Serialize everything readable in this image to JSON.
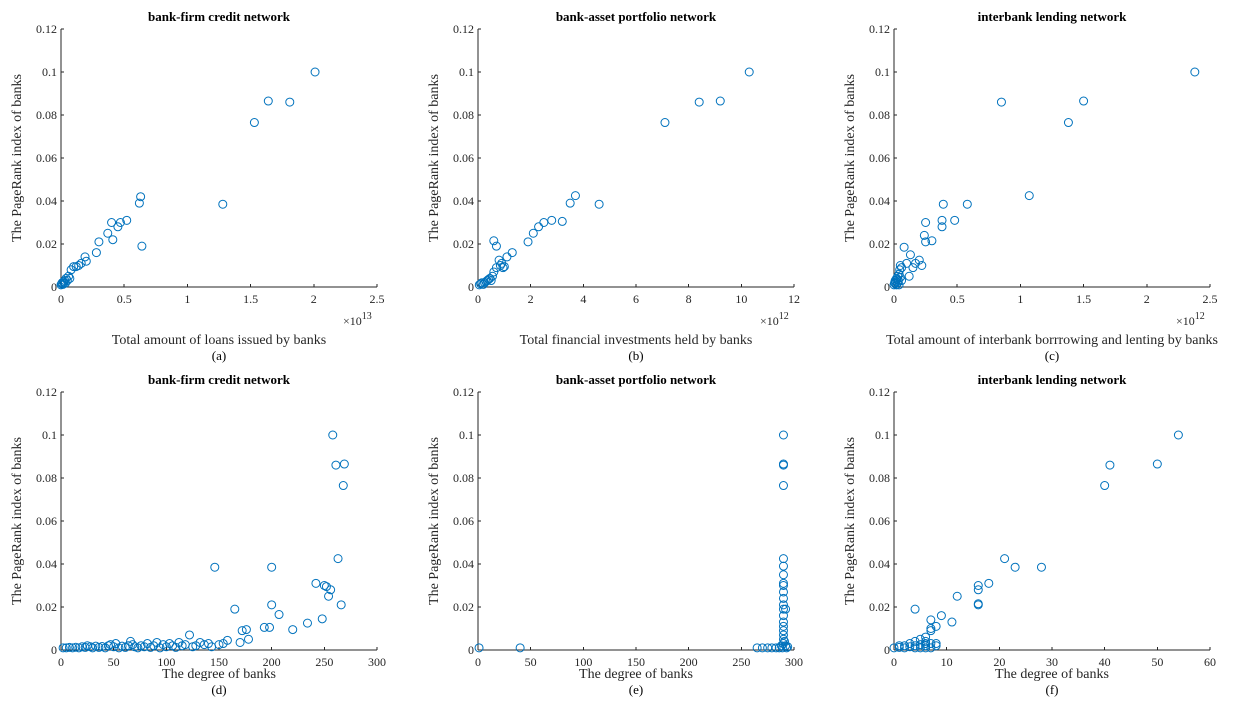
{
  "chart_data": [
    {
      "type": "scatter",
      "title": "bank-firm credit network",
      "xlabel": "Total amount of loans issued by banks",
      "ylabel": "The PageRank index of banks",
      "caption": "(a)",
      "x_multiplier": "10",
      "x_multiplier_exp": "13",
      "xlim": [
        0,
        2.5
      ],
      "ylim": [
        0,
        0.12
      ],
      "xticks": [
        "0",
        "0.5",
        "1",
        "1.5",
        "2",
        "2.5"
      ],
      "yticks": [
        "0",
        "0.02",
        "0.04",
        "0.06",
        "0.08",
        "0.1",
        "0.12"
      ],
      "marker_color": "#0072BD",
      "points": [
        [
          0.0,
          0.001
        ],
        [
          0.005,
          0.0015
        ],
        [
          0.01,
          0.002
        ],
        [
          0.015,
          0.0012
        ],
        [
          0.02,
          0.0025
        ],
        [
          0.025,
          0.002
        ],
        [
          0.03,
          0.003
        ],
        [
          0.035,
          0.0018
        ],
        [
          0.04,
          0.004
        ],
        [
          0.05,
          0.003
        ],
        [
          0.06,
          0.005
        ],
        [
          0.07,
          0.004
        ],
        [
          0.08,
          0.008
        ],
        [
          0.1,
          0.0095
        ],
        [
          0.12,
          0.0095
        ],
        [
          0.14,
          0.01
        ],
        [
          0.16,
          0.011
        ],
        [
          0.19,
          0.014
        ],
        [
          0.2,
          0.012
        ],
        [
          0.28,
          0.016
        ],
        [
          0.3,
          0.021
        ],
        [
          0.37,
          0.025
        ],
        [
          0.4,
          0.03
        ],
        [
          0.41,
          0.022
        ],
        [
          0.45,
          0.028
        ],
        [
          0.47,
          0.03
        ],
        [
          0.52,
          0.031
        ],
        [
          0.62,
          0.039
        ],
        [
          0.63,
          0.042
        ],
        [
          0.64,
          0.019
        ],
        [
          1.28,
          0.0385
        ],
        [
          1.53,
          0.0765
        ],
        [
          1.64,
          0.0865
        ],
        [
          1.81,
          0.086
        ],
        [
          2.01,
          0.1
        ]
      ]
    },
    {
      "type": "scatter",
      "title": "bank-asset portfolio network",
      "xlabel": "Total financial investments held by banks",
      "ylabel": "The PageRank index of banks",
      "caption": "(b)",
      "x_multiplier": "10",
      "x_multiplier_exp": "12",
      "xlim": [
        0,
        12
      ],
      "ylim": [
        0,
        0.12
      ],
      "xticks": [
        "0",
        "2",
        "4",
        "6",
        "8",
        "10",
        "12"
      ],
      "yticks": [
        "0",
        "0.02",
        "0.04",
        "0.06",
        "0.08",
        "0.1",
        "0.12"
      ],
      "marker_color": "#0072BD",
      "points": [
        [
          0.05,
          0.001
        ],
        [
          0.1,
          0.0015
        ],
        [
          0.15,
          0.002
        ],
        [
          0.2,
          0.0012
        ],
        [
          0.25,
          0.002
        ],
        [
          0.3,
          0.0025
        ],
        [
          0.35,
          0.003
        ],
        [
          0.4,
          0.0035
        ],
        [
          0.45,
          0.004
        ],
        [
          0.5,
          0.003
        ],
        [
          0.55,
          0.005
        ],
        [
          0.6,
          0.007
        ],
        [
          0.6,
          0.0215
        ],
        [
          0.7,
          0.019
        ],
        [
          0.7,
          0.009
        ],
        [
          0.8,
          0.0125
        ],
        [
          0.85,
          0.01
        ],
        [
          0.9,
          0.011
        ],
        [
          0.95,
          0.009
        ],
        [
          1.0,
          0.0095
        ],
        [
          1.1,
          0.014
        ],
        [
          1.3,
          0.016
        ],
        [
          1.9,
          0.021
        ],
        [
          2.1,
          0.025
        ],
        [
          2.3,
          0.028
        ],
        [
          2.5,
          0.03
        ],
        [
          2.8,
          0.031
        ],
        [
          3.2,
          0.0305
        ],
        [
          3.5,
          0.039
        ],
        [
          3.7,
          0.0425
        ],
        [
          4.6,
          0.0385
        ],
        [
          7.1,
          0.0765
        ],
        [
          8.4,
          0.086
        ],
        [
          9.2,
          0.0865
        ],
        [
          10.3,
          0.1
        ]
      ]
    },
    {
      "type": "scatter",
      "title": "interbank lending network",
      "xlabel": "Total amount of interbank borrrowing and lenting by banks",
      "ylabel": "The PageRank index of banks",
      "caption": "(c)",
      "x_multiplier": "10",
      "x_multiplier_exp": "12",
      "xlim": [
        0,
        2.5
      ],
      "ylim": [
        0,
        0.12
      ],
      "xticks": [
        "0",
        "0.5",
        "1",
        "1.5",
        "2",
        "2.5"
      ],
      "yticks": [
        "0",
        "0.02",
        "0.04",
        "0.06",
        "0.08",
        "0.1",
        "0.12"
      ],
      "marker_color": "#0072BD",
      "points": [
        [
          0.0,
          0.001
        ],
        [
          0.005,
          0.002
        ],
        [
          0.01,
          0.0015
        ],
        [
          0.01,
          0.003
        ],
        [
          0.015,
          0.0025
        ],
        [
          0.02,
          0.001
        ],
        [
          0.02,
          0.004
        ],
        [
          0.025,
          0.0035
        ],
        [
          0.03,
          0.002
        ],
        [
          0.03,
          0.005
        ],
        [
          0.035,
          0.003
        ],
        [
          0.04,
          0.001
        ],
        [
          0.04,
          0.006
        ],
        [
          0.045,
          0.008
        ],
        [
          0.05,
          0.01
        ],
        [
          0.05,
          0.0045
        ],
        [
          0.06,
          0.003
        ],
        [
          0.06,
          0.009
        ],
        [
          0.08,
          0.0185
        ],
        [
          0.1,
          0.011
        ],
        [
          0.12,
          0.005
        ],
        [
          0.13,
          0.015
        ],
        [
          0.15,
          0.009
        ],
        [
          0.17,
          0.011
        ],
        [
          0.2,
          0.0125
        ],
        [
          0.22,
          0.01
        ],
        [
          0.24,
          0.024
        ],
        [
          0.25,
          0.03
        ],
        [
          0.25,
          0.021
        ],
        [
          0.3,
          0.0215
        ],
        [
          0.38,
          0.028
        ],
        [
          0.38,
          0.031
        ],
        [
          0.39,
          0.0385
        ],
        [
          0.48,
          0.031
        ],
        [
          0.58,
          0.0385
        ],
        [
          0.85,
          0.086
        ],
        [
          1.07,
          0.0425
        ],
        [
          1.38,
          0.0765
        ],
        [
          1.5,
          0.0865
        ],
        [
          2.38,
          0.1
        ]
      ]
    },
    {
      "type": "scatter",
      "title": "bank-firm credit network",
      "xlabel": "The degree of banks",
      "ylabel": "The PageRank index of banks",
      "caption": "(d)",
      "x_multiplier": "",
      "x_multiplier_exp": "",
      "xlim": [
        0,
        300
      ],
      "ylim": [
        0,
        0.12
      ],
      "xticks": [
        "0",
        "50",
        "100",
        "150",
        "200",
        "250",
        "300"
      ],
      "yticks": [
        "0",
        "0.02",
        "0.04",
        "0.06",
        "0.08",
        "0.1",
        "0.12"
      ],
      "marker_color": "#0072BD",
      "points": [
        [
          2,
          0.001
        ],
        [
          5,
          0.001
        ],
        [
          8,
          0.0012
        ],
        [
          11,
          0.001
        ],
        [
          14,
          0.0013
        ],
        [
          17,
          0.001
        ],
        [
          20,
          0.0015
        ],
        [
          23,
          0.0012
        ],
        [
          25,
          0.002
        ],
        [
          28,
          0.0015
        ],
        [
          30,
          0.001
        ],
        [
          33,
          0.0018
        ],
        [
          36,
          0.0012
        ],
        [
          39,
          0.0016
        ],
        [
          42,
          0.001
        ],
        [
          45,
          0.002
        ],
        [
          47,
          0.0025
        ],
        [
          50,
          0.0015
        ],
        [
          52,
          0.003
        ],
        [
          55,
          0.001
        ],
        [
          58,
          0.0018
        ],
        [
          61,
          0.0012
        ],
        [
          64,
          0.002
        ],
        [
          66,
          0.004
        ],
        [
          68,
          0.0025
        ],
        [
          70,
          0.0015
        ],
        [
          73,
          0.001
        ],
        [
          76,
          0.002
        ],
        [
          79,
          0.0015
        ],
        [
          82,
          0.003
        ],
        [
          85,
          0.0012
        ],
        [
          88,
          0.002
        ],
        [
          91,
          0.0035
        ],
        [
          94,
          0.001
        ],
        [
          97,
          0.0025
        ],
        [
          100,
          0.0015
        ],
        [
          103,
          0.003
        ],
        [
          106,
          0.002
        ],
        [
          109,
          0.0012
        ],
        [
          112,
          0.0035
        ],
        [
          115,
          0.002
        ],
        [
          118,
          0.0025
        ],
        [
          122,
          0.007
        ],
        [
          125,
          0.0015
        ],
        [
          128,
          0.002
        ],
        [
          132,
          0.0035
        ],
        [
          136,
          0.0025
        ],
        [
          140,
          0.003
        ],
        [
          143,
          0.0015
        ],
        [
          146,
          0.0385
        ],
        [
          150,
          0.0025
        ],
        [
          154,
          0.003
        ],
        [
          158,
          0.0045
        ],
        [
          165,
          0.019
        ],
        [
          170,
          0.0035
        ],
        [
          172,
          0.009
        ],
        [
          176,
          0.0095
        ],
        [
          178,
          0.005
        ],
        [
          193,
          0.0105
        ],
        [
          198,
          0.0105
        ],
        [
          200,
          0.0385
        ],
        [
          200,
          0.021
        ],
        [
          207,
          0.0165
        ],
        [
          220,
          0.0095
        ],
        [
          234,
          0.0125
        ],
        [
          242,
          0.031
        ],
        [
          248,
          0.0145
        ],
        [
          250,
          0.03
        ],
        [
          252,
          0.0295
        ],
        [
          254,
          0.025
        ],
        [
          256,
          0.028
        ],
        [
          258,
          0.1
        ],
        [
          261,
          0.086
        ],
        [
          263,
          0.0425
        ],
        [
          266,
          0.021
        ],
        [
          268,
          0.0765
        ],
        [
          269,
          0.0865
        ]
      ]
    },
    {
      "type": "scatter",
      "title": "bank-asset portfolio network",
      "xlabel": "The degree of banks",
      "ylabel": "The PageRank index of banks",
      "caption": "(e)",
      "x_multiplier": "",
      "x_multiplier_exp": "",
      "xlim": [
        0,
        300
      ],
      "ylim": [
        0,
        0.12
      ],
      "xticks": [
        "0",
        "50",
        "100",
        "150",
        "200",
        "250",
        "300"
      ],
      "yticks": [
        "0",
        "0.02",
        "0.04",
        "0.06",
        "0.08",
        "0.1",
        "0.12"
      ],
      "marker_color": "#0072BD",
      "points": [
        [
          1,
          0.001
        ],
        [
          40,
          0.001
        ],
        [
          265,
          0.001
        ],
        [
          270,
          0.001
        ],
        [
          275,
          0.001
        ],
        [
          279,
          0.001
        ],
        [
          283,
          0.001
        ],
        [
          286,
          0.001
        ],
        [
          288,
          0.002
        ],
        [
          289,
          0.001
        ],
        [
          290,
          0.003
        ],
        [
          290,
          0.005
        ],
        [
          290,
          0.007
        ],
        [
          290,
          0.009
        ],
        [
          290,
          0.011
        ],
        [
          290,
          0.013
        ],
        [
          290,
          0.016
        ],
        [
          290,
          0.019
        ],
        [
          290,
          0.021
        ],
        [
          290,
          0.024
        ],
        [
          290,
          0.027
        ],
        [
          290,
          0.03
        ],
        [
          290,
          0.031
        ],
        [
          290,
          0.035
        ],
        [
          290,
          0.039
        ],
        [
          290,
          0.0425
        ],
        [
          290,
          0.0765
        ],
        [
          290,
          0.086
        ],
        [
          290,
          0.0865
        ],
        [
          290,
          0.1
        ],
        [
          291,
          0.004
        ],
        [
          292,
          0.002
        ],
        [
          293,
          0.001
        ],
        [
          294,
          0.0015
        ],
        [
          292,
          0.019
        ]
      ]
    },
    {
      "type": "scatter",
      "title": "interbank lending network",
      "xlabel": "The degree of banks",
      "ylabel": "The PageRank index of banks",
      "caption": "(f)",
      "x_multiplier": "",
      "x_multiplier_exp": "",
      "xlim": [
        0,
        60
      ],
      "ylim": [
        0,
        0.12
      ],
      "xticks": [
        "0",
        "10",
        "20",
        "30",
        "40",
        "50",
        "60"
      ],
      "yticks": [
        "0",
        "0.02",
        "0.04",
        "0.06",
        "0.08",
        "0.1",
        "0.12"
      ],
      "marker_color": "#0072BD",
      "points": [
        [
          0,
          0.001
        ],
        [
          1,
          0.0012
        ],
        [
          1,
          0.002
        ],
        [
          2,
          0.001
        ],
        [
          2,
          0.002
        ],
        [
          3,
          0.0015
        ],
        [
          3,
          0.003
        ],
        [
          4,
          0.001
        ],
        [
          4,
          0.002
        ],
        [
          4,
          0.004
        ],
        [
          5,
          0.001
        ],
        [
          5,
          0.0025
        ],
        [
          5,
          0.005
        ],
        [
          6,
          0.001
        ],
        [
          6,
          0.002
        ],
        [
          6,
          0.003
        ],
        [
          6,
          0.004
        ],
        [
          6,
          0.006
        ],
        [
          7,
          0.001
        ],
        [
          7,
          0.003
        ],
        [
          7,
          0.009
        ],
        [
          7,
          0.01
        ],
        [
          7,
          0.014
        ],
        [
          8,
          0.002
        ],
        [
          8,
          0.003
        ],
        [
          8,
          0.011
        ],
        [
          9,
          0.016
        ],
        [
          11,
          0.013
        ],
        [
          4,
          0.019
        ],
        [
          12,
          0.025
        ],
        [
          16,
          0.021
        ],
        [
          16,
          0.0215
        ],
        [
          16,
          0.028
        ],
        [
          16,
          0.03
        ],
        [
          18,
          0.031
        ],
        [
          21,
          0.0425
        ],
        [
          23,
          0.0385
        ],
        [
          28,
          0.0385
        ],
        [
          40,
          0.0765
        ],
        [
          41,
          0.086
        ],
        [
          50,
          0.0865
        ],
        [
          54,
          0.1
        ]
      ]
    }
  ]
}
